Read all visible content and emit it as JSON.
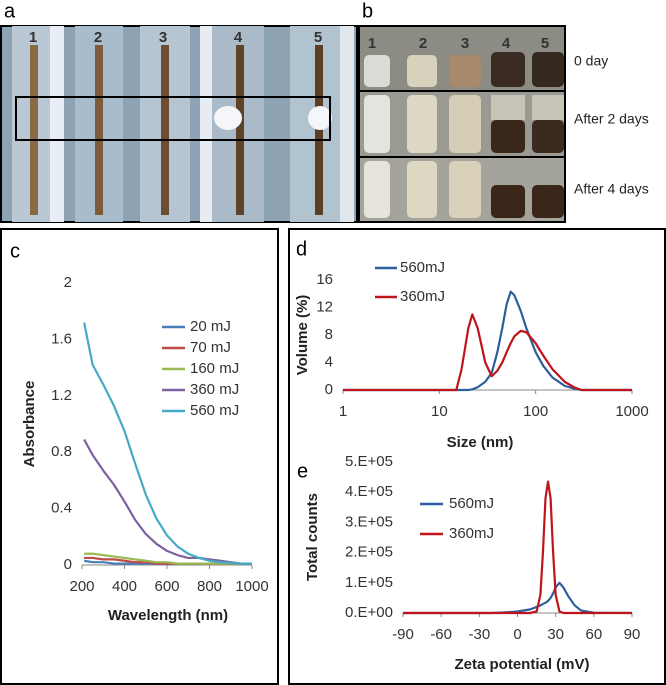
{
  "photos": {
    "a": {
      "panel": "a",
      "tubes": [
        "1",
        "2",
        "3",
        "4",
        "5"
      ]
    },
    "b": {
      "panel": "b",
      "vials": [
        "1",
        "2",
        "3",
        "4",
        "5"
      ],
      "rows": [
        "0 day",
        "After 2 days",
        "After 4 days"
      ]
    }
  },
  "chart_data": [
    {
      "type": "line",
      "panel": "c",
      "xlabel": "Wavelength (nm)",
      "ylabel": "Absorbance",
      "x": [
        210,
        250,
        300,
        350,
        400,
        450,
        500,
        550,
        600,
        650,
        700,
        750,
        800,
        850,
        900,
        950,
        1000
      ],
      "xlim": [
        200,
        1000
      ],
      "xticks": [
        200,
        400,
        600,
        800,
        1000
      ],
      "ylim": [
        0,
        2
      ],
      "yticks": [
        0,
        0.4,
        0.8,
        1.2,
        1.6,
        2
      ],
      "legend": "right",
      "series": [
        {
          "name": "20 mJ",
          "color": "#4a7ebb",
          "values": [
            0.03,
            0.02,
            0.02,
            0.01,
            0.01,
            0.01,
            0.01,
            0.01,
            0.01,
            0.01,
            0.01,
            0.01,
            0.01,
            0.01,
            0.01,
            0.01,
            0.01
          ]
        },
        {
          "name": "70 mJ",
          "color": "#be4b48",
          "values": [
            0.05,
            0.05,
            0.04,
            0.04,
            0.03,
            0.02,
            0.02,
            0.01,
            0.01,
            0.01,
            0.01,
            0.01,
            0.01,
            0.01,
            0.01,
            0.01,
            0.01
          ]
        },
        {
          "name": "160 mJ",
          "color": "#98b954",
          "values": [
            0.08,
            0.08,
            0.07,
            0.06,
            0.05,
            0.04,
            0.03,
            0.02,
            0.02,
            0.01,
            0.01,
            0.01,
            0.01,
            0.01,
            0.01,
            0.01,
            0.01
          ]
        },
        {
          "name": "360 mJ",
          "color": "#7d60a0",
          "values": [
            0.89,
            0.78,
            0.67,
            0.57,
            0.45,
            0.32,
            0.22,
            0.15,
            0.1,
            0.07,
            0.05,
            0.05,
            0.04,
            0.03,
            0.02,
            0.01,
            0.01
          ]
        },
        {
          "name": "560 mJ",
          "color": "#46aac5",
          "values": [
            1.72,
            1.42,
            1.28,
            1.13,
            0.95,
            0.72,
            0.5,
            0.33,
            0.21,
            0.13,
            0.08,
            0.05,
            0.03,
            0.02,
            0.015,
            0.01,
            0.01
          ]
        }
      ]
    },
    {
      "type": "line",
      "panel": "d",
      "xlabel": "Size (nm)",
      "ylabel": "Volume (%)",
      "log_x": true,
      "x": [
        1,
        15,
        17,
        20,
        22,
        25,
        30,
        35,
        40,
        45,
        50,
        55,
        60,
        70,
        80,
        100,
        120,
        150,
        200,
        250,
        300,
        1000
      ],
      "xlim": [
        1,
        1000
      ],
      "xticks": [
        1,
        10,
        100,
        1000
      ],
      "ylim": [
        0,
        16
      ],
      "yticks": [
        0,
        4,
        8,
        12,
        16
      ],
      "legend": "upper left",
      "series": [
        {
          "name": "560mJ",
          "color": "#2e5f9a",
          "values": [
            0,
            0,
            0,
            0,
            0.1,
            0.4,
            1.2,
            2.5,
            5.5,
            9,
            12.5,
            14.3,
            13.8,
            11.5,
            9,
            5.5,
            3.5,
            1.8,
            0.6,
            0.2,
            0,
            0
          ]
        },
        {
          "name": "360mJ",
          "color": "#c0141c",
          "values": [
            0,
            0,
            3,
            9,
            11,
            9,
            4,
            2,
            2.8,
            4,
            5.5,
            6.8,
            7.8,
            8.6,
            8.4,
            6.8,
            5,
            3,
            1.2,
            0.4,
            0,
            0
          ]
        }
      ]
    },
    {
      "type": "line",
      "panel": "e",
      "xlabel": "Zeta potential (mV)",
      "ylabel": "Total counts",
      "x": [
        -90,
        -20,
        -10,
        0,
        10,
        15,
        18,
        20,
        22,
        24,
        26,
        28,
        30,
        33,
        36,
        40,
        45,
        50,
        60,
        90
      ],
      "xlim": [
        -90,
        90
      ],
      "xticks": [
        -90,
        -60,
        -30,
        0,
        30,
        60,
        90
      ],
      "ylim": [
        0,
        500000
      ],
      "yticks": [
        {
          "value": 0,
          "label": "0.E+00"
        },
        {
          "value": 100000,
          "label": "1.E+05"
        },
        {
          "value": 200000,
          "label": "2.E+05"
        },
        {
          "value": 300000,
          "label": "3.E+05"
        },
        {
          "value": 400000,
          "label": "4.E+05"
        },
        {
          "value": 500000,
          "label": "5.E+05"
        }
      ],
      "legend": "upper left",
      "series": [
        {
          "name": "560mJ",
          "color": "#2e5f9a",
          "values": [
            0,
            0,
            2000,
            5000,
            12000,
            20000,
            25000,
            30000,
            34000,
            40000,
            50000,
            65000,
            85000,
            100000,
            85000,
            55000,
            25000,
            8000,
            1000,
            0
          ]
        },
        {
          "name": "360mJ",
          "color": "#c0141c",
          "values": [
            0,
            0,
            0,
            0,
            0,
            5000,
            60000,
            200000,
            380000,
            435000,
            380000,
            200000,
            60000,
            5000,
            0,
            0,
            0,
            0,
            0,
            0
          ]
        }
      ]
    }
  ]
}
